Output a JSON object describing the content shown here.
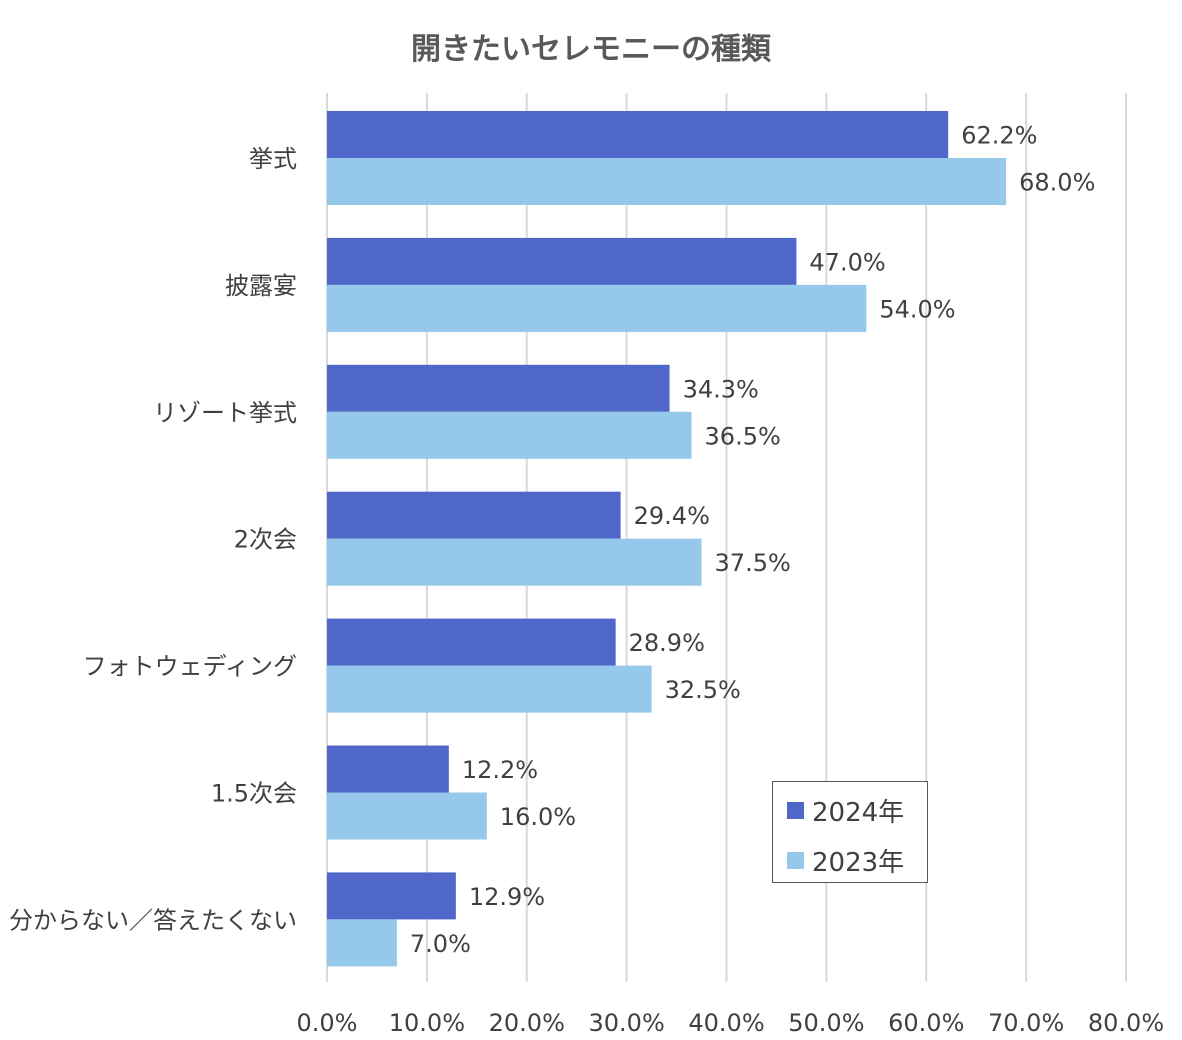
{
  "chart_data": {
    "type": "bar",
    "orientation": "horizontal",
    "title": "開きたいセレモニーの種類",
    "categories": [
      "挙式",
      "披露宴",
      "リゾート挙式",
      "2次会",
      "フォトウェディング",
      "1.5次会",
      "分からない／答えたくない"
    ],
    "series": [
      {
        "name": "2024年",
        "color": "#4F67C8",
        "values": [
          62.2,
          47.0,
          34.3,
          29.4,
          28.9,
          12.2,
          12.9
        ],
        "labels": [
          "62.2%",
          "47.0%",
          "34.3%",
          "29.4%",
          "28.9%",
          "12.2%",
          "12.9%"
        ]
      },
      {
        "name": "2023年",
        "color": "#95C8EA",
        "values": [
          68.0,
          54.0,
          36.5,
          37.5,
          32.5,
          16.0,
          7.0
        ],
        "labels": [
          "68.0%",
          "54.0%",
          "36.5%",
          "37.5%",
          "32.5%",
          "16.0%",
          "7.0%"
        ]
      }
    ],
    "xlim": [
      0,
      80
    ],
    "xticks": [
      "0.0%",
      "10.0%",
      "20.0%",
      "30.0%",
      "40.0%",
      "50.0%",
      "60.0%",
      "70.0%",
      "80.0%"
    ],
    "grid": true,
    "legend_position": "bottom-right"
  }
}
